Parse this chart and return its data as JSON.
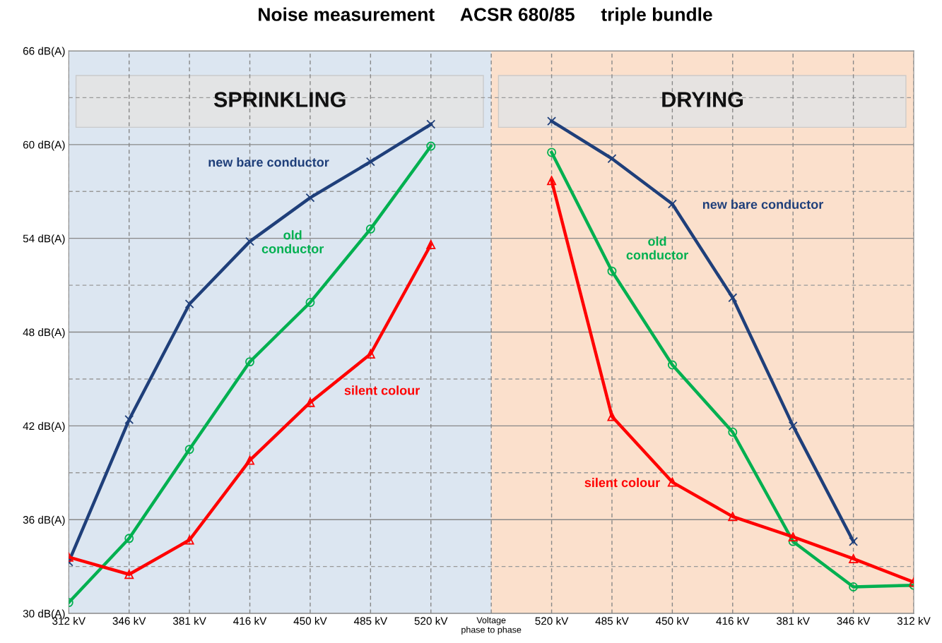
{
  "chart_data": {
    "type": "line",
    "title": "Noise measurement     ACSR 680/85     triple bundle",
    "categories": [
      "312 kV",
      "346 kV",
      "381 kV",
      "416 kV",
      "450 kV",
      "485 kV",
      "520 kV",
      "Voltage\nphase to phase",
      "520 kV",
      "485 kV",
      "450 kV",
      "416 kV",
      "381 kV",
      "346 kV",
      "312 kV"
    ],
    "series": [
      {
        "name": "new bare conductor",
        "color": "#1f3f7a",
        "marker": "cross",
        "values": [
          33.3,
          42.4,
          49.8,
          53.8,
          56.6,
          58.9,
          61.3,
          null,
          61.5,
          59.1,
          56.2,
          50.2,
          42.0,
          34.6,
          null
        ]
      },
      {
        "name": "old\nconductor",
        "color": "#00b050",
        "marker": "circle",
        "values": [
          30.7,
          34.8,
          40.5,
          46.1,
          49.9,
          54.6,
          59.9,
          null,
          59.5,
          51.9,
          45.9,
          41.6,
          34.6,
          31.7,
          31.8
        ]
      },
      {
        "name": "silent colour",
        "color": "#ff0000",
        "marker": "triangle",
        "values": [
          33.6,
          32.5,
          34.7,
          39.8,
          43.5,
          46.6,
          53.6,
          null,
          57.7,
          42.6,
          38.4,
          36.2,
          34.9,
          33.5,
          32.0
        ]
      }
    ],
    "ylim": [
      30,
      66
    ],
    "yticks": [
      {
        "value": 30,
        "label": "30 dB(A)"
      },
      {
        "value": 33,
        "label": null
      },
      {
        "value": 36,
        "label": "36 dB(A)"
      },
      {
        "value": 39,
        "label": null
      },
      {
        "value": 42,
        "label": "42 dB(A)"
      },
      {
        "value": 45,
        "label": null
      },
      {
        "value": 48,
        "label": "48 dB(A)"
      },
      {
        "value": 51,
        "label": null
      },
      {
        "value": 54,
        "label": "54 dB(A)"
      },
      {
        "value": 57,
        "label": null
      },
      {
        "value": 60,
        "label": "60 dB(A)"
      },
      {
        "value": 63,
        "label": null
      },
      {
        "value": 66,
        "label": "66 dB(A)"
      }
    ],
    "annotations": [
      "SPRINKLING",
      "DRYING"
    ],
    "grid": true,
    "line_style": "solid",
    "legend": false
  }
}
